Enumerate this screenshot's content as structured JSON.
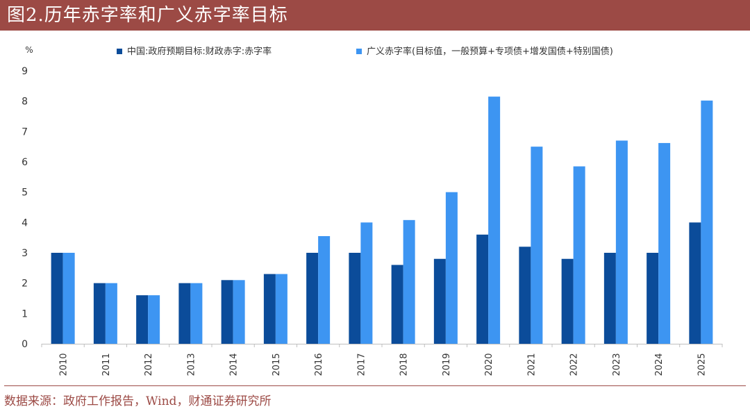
{
  "title": "图2.历年赤字率和广义赤字率目标",
  "source": "数据来源：政府工作报告，Wind，财通证券研究所",
  "colors": {
    "title_bg": "#9c4a45",
    "series1": "#0b4c9a",
    "series2": "#3d95f2",
    "axis": "#bfbfbf",
    "text": "#333333"
  },
  "chart_data": {
    "type": "bar",
    "ylabel": "%",
    "ylim": [
      0,
      9
    ],
    "yticks": [
      0,
      1,
      2,
      3,
      4,
      5,
      6,
      7,
      8,
      9
    ],
    "grid": false,
    "legend_position": "top",
    "categories": [
      "2010",
      "2011",
      "2012",
      "2013",
      "2014",
      "2015",
      "2016",
      "2017",
      "2018",
      "2019",
      "2020",
      "2021",
      "2022",
      "2023",
      "2024",
      "2025"
    ],
    "series": [
      {
        "name": "中国:政府预期目标:财政赤字:赤字率",
        "values": [
          3.0,
          2.0,
          1.6,
          2.0,
          2.1,
          2.3,
          3.0,
          3.0,
          2.6,
          2.8,
          3.6,
          3.2,
          2.8,
          3.0,
          3.0,
          4.0
        ]
      },
      {
        "name": "广义赤字率(目标值，一般预算+专项债+增发国债+特别国债)",
        "values": [
          3.0,
          2.0,
          1.6,
          2.0,
          2.1,
          2.3,
          3.55,
          4.0,
          4.08,
          5.0,
          8.15,
          6.5,
          5.85,
          6.7,
          6.62,
          8.02
        ]
      }
    ]
  }
}
